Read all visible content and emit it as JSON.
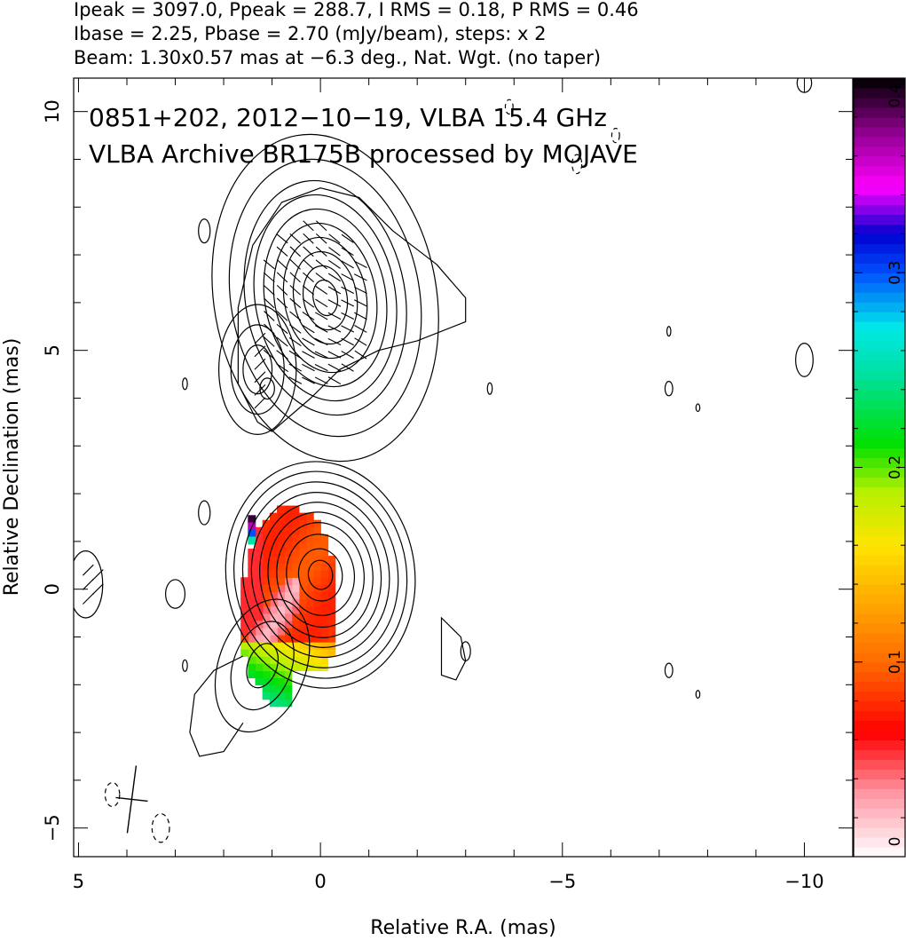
{
  "header": {
    "line1": "Ipeak = 3097.0, Ppeak = 288.7, I RMS = 0.18, P RMS = 0.46",
    "line2": "Ibase = 2.25, Pbase = 2.70 (mJy/beam), steps: x 2",
    "line3": "Beam: 1.30x0.57 mas at −6.3 deg., Nat. Wgt. (no taper)"
  },
  "chart_data": {
    "type": "heatmap",
    "title": "0851+202, 2012−10−19, VLBA 15.4 GHz",
    "subtitle": "VLBA Archive BR175B processed by MOJAVE",
    "xlabel": "Relative R.A. (mas)",
    "ylabel": "Relative Declination (mas)",
    "xlim": [
      5.1,
      -11.0
    ],
    "ylim": [
      -5.6,
      10.7
    ],
    "x_ticks": [
      {
        "value": 5,
        "label": "5"
      },
      {
        "value": 0,
        "label": "0"
      },
      {
        "value": -5,
        "label": "−5"
      },
      {
        "value": -10,
        "label": "−10"
      }
    ],
    "y_ticks": [
      {
        "value": 10,
        "label": "10"
      },
      {
        "value": 5,
        "label": "5"
      },
      {
        "value": 0,
        "label": "0"
      },
      {
        "value": -5,
        "label": "−5"
      }
    ],
    "colorbar": {
      "range": [
        0,
        0.4
      ],
      "ticks": [
        {
          "value": 0,
          "label": "0"
        },
        {
          "value": 0.1,
          "label": "0.1"
        },
        {
          "value": 0.2,
          "label": "0.2"
        },
        {
          "value": 0.3,
          "label": "0.3"
        },
        {
          "value": 0.4,
          "label": "0.4"
        }
      ],
      "colormap": [
        {
          "stop": 0.0,
          "color": "#ffffff"
        },
        {
          "stop": 0.08,
          "color": "#ff9aa8"
        },
        {
          "stop": 0.16,
          "color": "#ff0000"
        },
        {
          "stop": 0.25,
          "color": "#ff6a00"
        },
        {
          "stop": 0.33,
          "color": "#ffaa00"
        },
        {
          "stop": 0.4,
          "color": "#ffe400"
        },
        {
          "stop": 0.47,
          "color": "#b5f000"
        },
        {
          "stop": 0.53,
          "color": "#00e000"
        },
        {
          "stop": 0.62,
          "color": "#00e0a0"
        },
        {
          "stop": 0.68,
          "color": "#00e8e8"
        },
        {
          "stop": 0.75,
          "color": "#0050ff"
        },
        {
          "stop": 0.8,
          "color": "#0000d0"
        },
        {
          "stop": 0.86,
          "color": "#ff00ff"
        },
        {
          "stop": 0.93,
          "color": "#900090"
        },
        {
          "stop": 1.0,
          "color": "#000000"
        }
      ]
    },
    "total_intensity_contours": {
      "components": [
        {
          "x": 0.0,
          "y": 0.3,
          "levels_rx": [
            0.25,
            0.45,
            0.7,
            0.9,
            1.08,
            1.25,
            1.42,
            1.6,
            1.78,
            1.95
          ],
          "ratio": 1.22,
          "angle": -8
        },
        {
          "x": 1.2,
          "y": -1.6,
          "levels_rx": [
            0.3,
            0.6,
            0.9
          ],
          "ratio": 1.6,
          "angle": 20
        },
        {
          "x": -0.1,
          "y": 6.1,
          "levels_rx": [
            0.25,
            0.45,
            0.65,
            0.85,
            1.05,
            1.25,
            1.45,
            1.65,
            1.95,
            2.3
          ],
          "ratio": 1.5,
          "angle": -10
        },
        {
          "x": 1.3,
          "y": 4.6,
          "levels_rx": [
            0.3,
            0.55,
            0.8
          ],
          "ratio": 1.7,
          "angle": 0
        }
      ],
      "islands": [
        {
          "x": 2.4,
          "y": 7.5,
          "rx": 0.12,
          "ry": 0.25
        },
        {
          "x": 2.8,
          "y": 4.3,
          "rx": 0.05,
          "ry": 0.12
        },
        {
          "x": 1.1,
          "y": 4.2,
          "rx": 0.15,
          "ry": 0.22
        },
        {
          "x": -3.5,
          "y": 4.2,
          "rx": 0.05,
          "ry": 0.12
        },
        {
          "x": 2.4,
          "y": 1.6,
          "rx": 0.12,
          "ry": 0.25
        },
        {
          "x": 3.0,
          "y": -0.1,
          "rx": 0.2,
          "ry": 0.3
        },
        {
          "x": 2.8,
          "y": -1.6,
          "rx": 0.05,
          "ry": 0.12
        },
        {
          "x": -3.0,
          "y": -1.3,
          "rx": 0.1,
          "ry": 0.2
        },
        {
          "x": -7.2,
          "y": 5.4,
          "rx": 0.04,
          "ry": 0.1
        },
        {
          "x": -7.2,
          "y": 4.2,
          "rx": 0.08,
          "ry": 0.15
        },
        {
          "x": -7.8,
          "y": 3.8,
          "rx": 0.04,
          "ry": 0.08
        },
        {
          "x": -10.0,
          "y": 4.8,
          "rx": 0.18,
          "ry": 0.35
        },
        {
          "x": -7.2,
          "y": -1.7,
          "rx": 0.08,
          "ry": 0.15
        },
        {
          "x": -7.8,
          "y": -2.2,
          "rx": 0.04,
          "ry": 0.08
        },
        {
          "x": -10.0,
          "y": 10.6,
          "rx": 0.15,
          "ry": 0.2
        }
      ],
      "negative_islands": [
        {
          "x": 4.3,
          "y": -4.3,
          "rx": 0.15,
          "ry": 0.25
        },
        {
          "x": 3.3,
          "y": -5.0,
          "rx": 0.18,
          "ry": 0.3
        },
        {
          "x": -5.3,
          "y": 8.9,
          "rx": 0.1,
          "ry": 0.2
        },
        {
          "x": -6.1,
          "y": 9.5,
          "rx": 0.08,
          "ry": 0.15
        },
        {
          "x": -3.9,
          "y": 10.1,
          "rx": 0.08,
          "ry": 0.15
        }
      ]
    },
    "fractional_polarization_region": {
      "x": 0.55,
      "y": -0.4,
      "rx": 1.0,
      "ry": 2.05,
      "tilt_deg": 6
    },
    "evpa_region": {
      "x": 0.1,
      "y": 5.9,
      "rx": 1.2,
      "ry": 1.8,
      "angle_deg": 35
    }
  }
}
